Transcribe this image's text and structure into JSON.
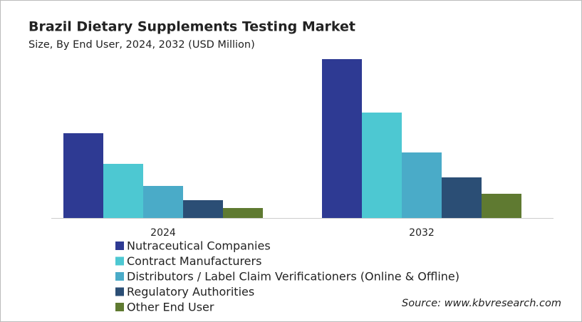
{
  "chart_data": {
    "type": "bar",
    "title": "Brazil Dietary Supplements Testing Market",
    "subtitle": "Size, By End User, 2024, 2032 (USD Million)",
    "categories": [
      "2024",
      "2032"
    ],
    "series": [
      {
        "name": "Nutraceutical Companies",
        "color": "#2e3a93",
        "values": [
          119,
          223
        ]
      },
      {
        "name": "Contract Manufacturers",
        "color": "#4dc8d2",
        "values": [
          76,
          148
        ]
      },
      {
        "name": "Distributors / Label Claim Verificationers (Online & Offline)",
        "color": "#4aabc8",
        "values": [
          45,
          92
        ]
      },
      {
        "name": "Regulatory Authorities",
        "color": "#2b4e75",
        "values": [
          25,
          57
        ]
      },
      {
        "name": "Other End User",
        "color": "#5f7a31",
        "values": [
          14,
          34
        ]
      }
    ],
    "source": "Source: www.kbvresearch.com"
  }
}
